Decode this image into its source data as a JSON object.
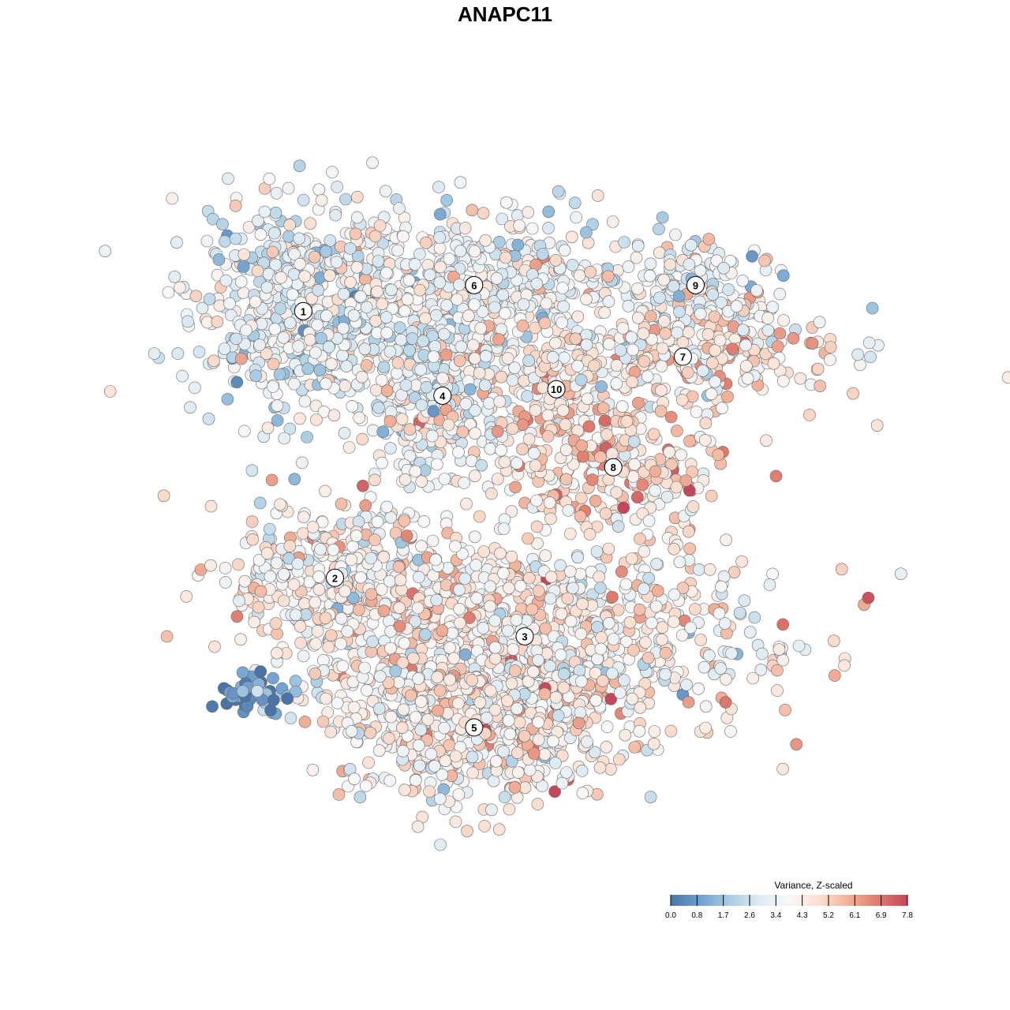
{
  "chart_data": {
    "type": "scatter",
    "title": "ANAPC11",
    "xlabel": "",
    "ylabel": "",
    "grid": false,
    "legend": {
      "title": "Variance, Z-scaled",
      "placement": "bottom-right",
      "range": [
        0,
        7.8
      ],
      "ticks": [
        "0.0",
        "0.8",
        "1.7",
        "2.6",
        "3.4",
        "4.3",
        "5.2",
        "6.1",
        "6.9",
        "7.8"
      ],
      "colors": [
        "#4a74a8",
        "#6fa0cf",
        "#a9cde3",
        "#deebf3",
        "#f7f7f7",
        "#fbe0d2",
        "#f2b199",
        "#df7a6d",
        "#c4485b"
      ]
    },
    "clusters": [
      {
        "id": "1",
        "center": [
          -35,
          32
        ],
        "spread": [
          9,
          8
        ],
        "count": 620,
        "mean": 3.3
      },
      {
        "id": "6",
        "center": [
          -8,
          36
        ],
        "spread": [
          12,
          6
        ],
        "count": 520,
        "mean": 3.6
      },
      {
        "id": "4",
        "center": [
          -13,
          19
        ],
        "spread": [
          6,
          7
        ],
        "count": 380,
        "mean": 3.7
      },
      {
        "id": "10",
        "center": [
          5,
          20
        ],
        "spread": [
          3,
          4
        ],
        "count": 110,
        "mean": 4.8
      },
      {
        "id": "9",
        "center": [
          27,
          36
        ],
        "spread": [
          8,
          3
        ],
        "count": 170,
        "mean": 3.6
      },
      {
        "id": "7",
        "center": [
          25,
          25
        ],
        "spread": [
          12,
          3.5
        ],
        "count": 300,
        "mean": 4.3
      },
      {
        "id": "8",
        "center": [
          14,
          8
        ],
        "spread": [
          9,
          5
        ],
        "count": 260,
        "mean": 4.9
      },
      {
        "id": "2",
        "center": [
          -30,
          -9
        ],
        "spread": [
          8,
          6
        ],
        "count": 320,
        "mean": 4.1
      },
      {
        "id": "3",
        "center": [
          0,
          -18
        ],
        "spread": [
          18,
          8
        ],
        "count": 1050,
        "mean": 4.2
      },
      {
        "id": "5",
        "center": [
          -8,
          -32
        ],
        "spread": [
          10,
          6
        ],
        "count": 560,
        "mean": 4.2
      },
      {
        "id": "",
        "center": [
          -42,
          -27
        ],
        "spread": [
          3,
          1.5
        ],
        "count": 45,
        "mean": 0.5
      }
    ],
    "xlim": [
      -58,
      58
    ],
    "ylim": [
      -53,
      58
    ]
  }
}
